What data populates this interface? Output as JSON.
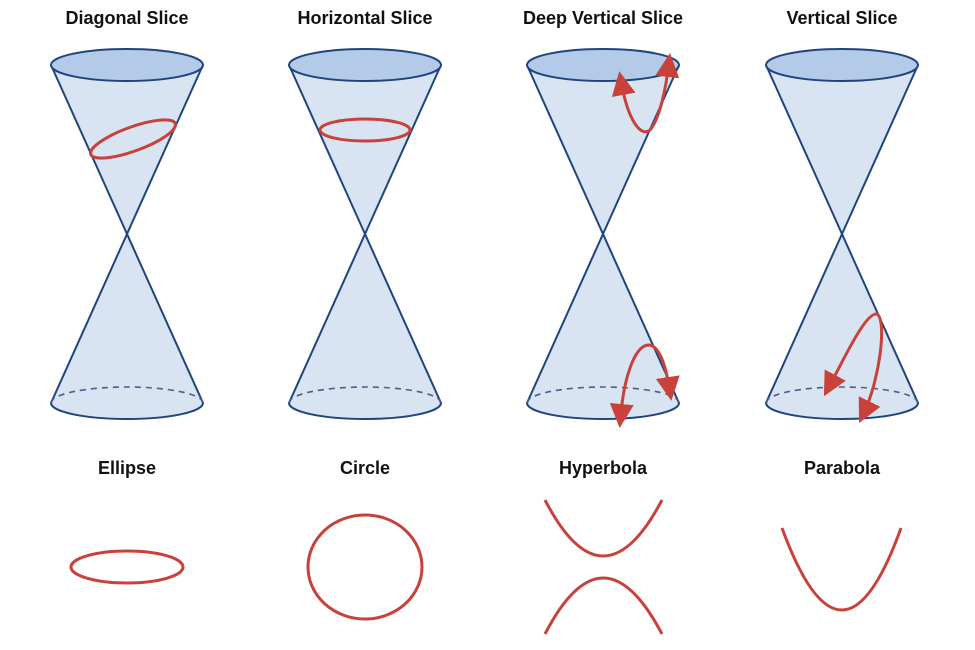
{
  "cones": [
    {
      "title": "Diagonal Slice",
      "slice": "diagonal"
    },
    {
      "title": "Horizontal Slice",
      "slice": "horizontal"
    },
    {
      "title": "Deep Vertical Slice",
      "slice": "deep-vertical"
    },
    {
      "title": "Vertical Slice",
      "slice": "vertical"
    }
  ],
  "curves": [
    {
      "label": "Ellipse"
    },
    {
      "label": "Circle"
    },
    {
      "label": "Hyperbola"
    },
    {
      "label": "Parabola"
    }
  ],
  "colors": {
    "cone_fill": "#d9e4f3",
    "cone_top": "#b3cbe9",
    "cone_stroke": "#1f447e",
    "slice": "#c8413b"
  }
}
